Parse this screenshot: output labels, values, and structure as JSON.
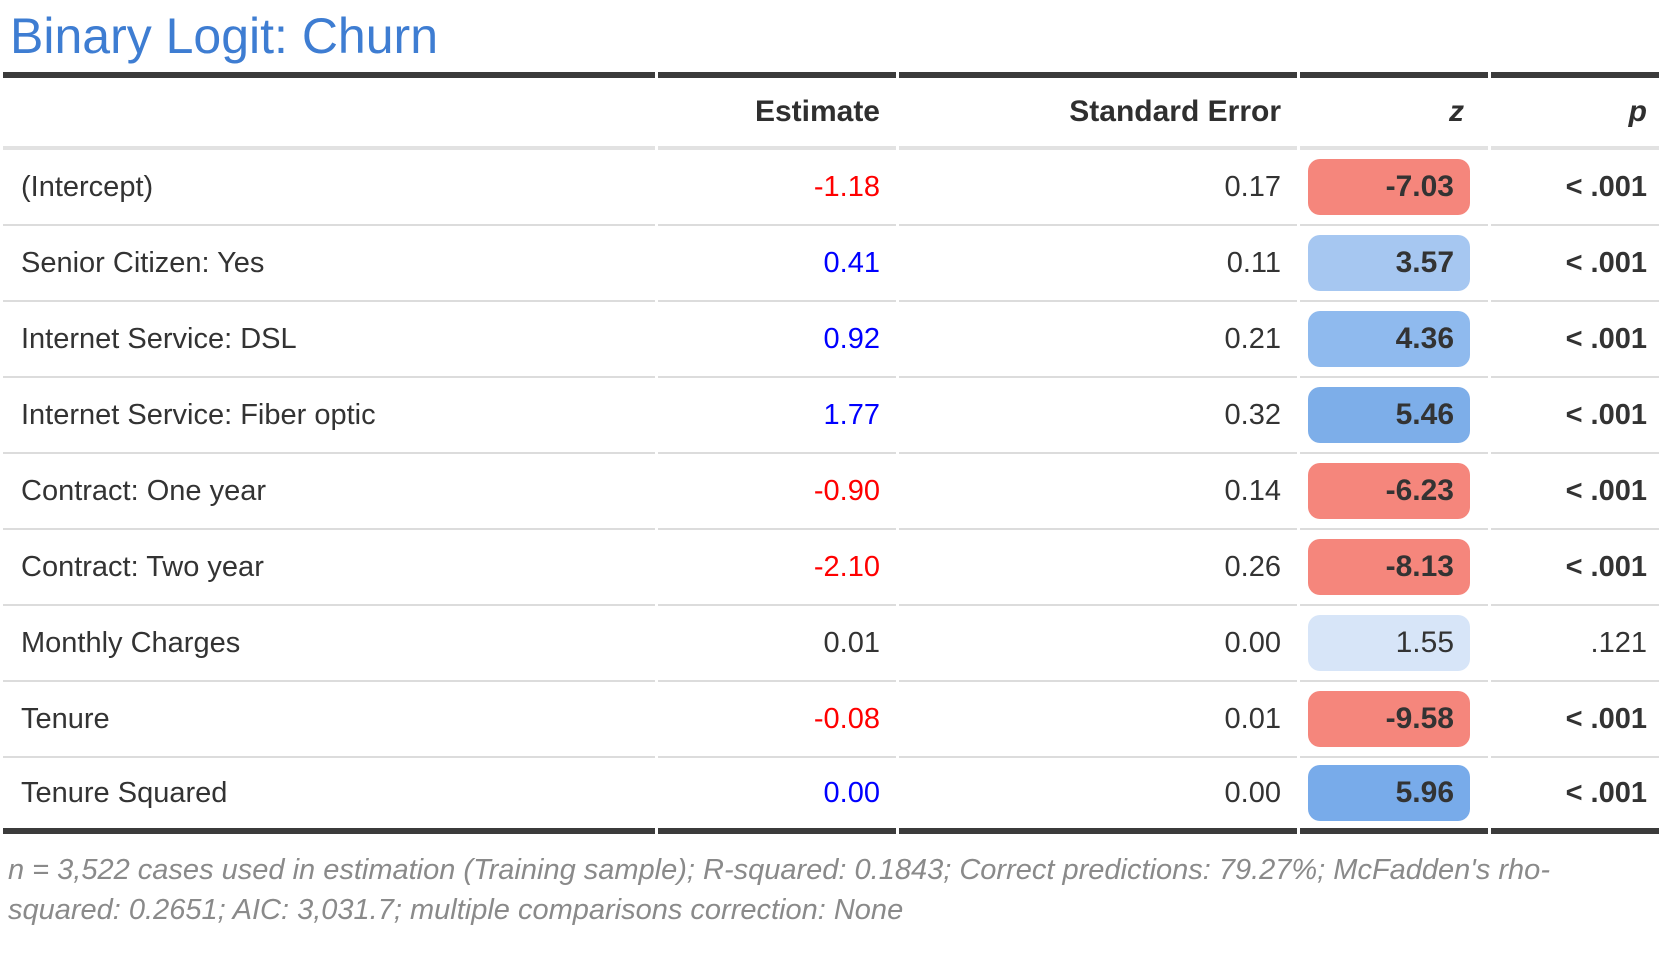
{
  "title": "Binary Logit: Churn",
  "columns": {
    "estimate": "Estimate",
    "standard_error": "Standard Error",
    "z": "z",
    "p": "p"
  },
  "rows": [
    {
      "label": "(Intercept)",
      "estimate": "-1.18",
      "estimate_color": "#FF0000",
      "se": "0.17",
      "z": "-7.03",
      "z_bg": "#F5867C",
      "p": "< .001",
      "significant": true
    },
    {
      "label": "Senior Citizen: Yes",
      "estimate": "0.41",
      "estimate_color": "#0000FF",
      "se": "0.11",
      "z": "3.57",
      "z_bg": "#A6C7F1",
      "p": "< .001",
      "significant": true
    },
    {
      "label": "Internet Service: DSL",
      "estimate": "0.92",
      "estimate_color": "#0000FF",
      "se": "0.21",
      "z": "4.36",
      "z_bg": "#8FBAEE",
      "p": "< .001",
      "significant": true
    },
    {
      "label": "Internet Service: Fiber optic",
      "estimate": "1.77",
      "estimate_color": "#0000FF",
      "se": "0.32",
      "z": "5.46",
      "z_bg": "#7DAEE9",
      "p": "< .001",
      "significant": true
    },
    {
      "label": "Contract: One year",
      "estimate": "-0.90",
      "estimate_color": "#FF0000",
      "se": "0.14",
      "z": "-6.23",
      "z_bg": "#F5867C",
      "p": "< .001",
      "significant": true
    },
    {
      "label": "Contract: Two year",
      "estimate": "-2.10",
      "estimate_color": "#FF0000",
      "se": "0.26",
      "z": "-8.13",
      "z_bg": "#F5867C",
      "p": "< .001",
      "significant": true
    },
    {
      "label": "Monthly Charges",
      "estimate": "0.01",
      "estimate_color": "#333333",
      "se": "0.00",
      "z": "1.55",
      "z_bg": "#D7E5F8",
      "p": ".121",
      "significant": false
    },
    {
      "label": "Tenure",
      "estimate": "-0.08",
      "estimate_color": "#FF0000",
      "se": "0.01",
      "z": "-9.58",
      "z_bg": "#F5867C",
      "p": "< .001",
      "significant": true
    },
    {
      "label": "Tenure Squared",
      "estimate": "0.00",
      "estimate_color": "#0000FF",
      "se": "0.00",
      "z": "5.96",
      "z_bg": "#78ABEA",
      "p": "< .001",
      "significant": true
    }
  ],
  "footer": "n = 3,522 cases used in estimation (Training sample); R-squared: 0.1843; Correct predictions: 79.27%; McFadden's rho-squared: 0.2651; AIC: 3,031.7; multiple comparisons correction: None",
  "colors": {
    "title": "#3E7DD2",
    "positive_estimate": "#0000FF",
    "negative_estimate": "#FF0000",
    "neutral_text": "#333333",
    "negative_z_badge": "#F5867C",
    "positive_z_badge_strong": "#78ABEA",
    "positive_z_badge_weak": "#D7E5F8",
    "dark_rule": "#3B3B3B",
    "row_separator": "#DCDCDC",
    "footer_text": "#8A8A8A"
  },
  "chart_data": {
    "type": "table",
    "title": "Binary Logit: Churn",
    "columns": [
      "Estimate",
      "Standard Error",
      "z",
      "p"
    ],
    "rows": [
      {
        "label": "(Intercept)",
        "estimate": -1.18,
        "standard_error": 0.17,
        "z": -7.03,
        "p": "< .001"
      },
      {
        "label": "Senior Citizen: Yes",
        "estimate": 0.41,
        "standard_error": 0.11,
        "z": 3.57,
        "p": "< .001"
      },
      {
        "label": "Internet Service: DSL",
        "estimate": 0.92,
        "standard_error": 0.21,
        "z": 4.36,
        "p": "< .001"
      },
      {
        "label": "Internet Service: Fiber optic",
        "estimate": 1.77,
        "standard_error": 0.32,
        "z": 5.46,
        "p": "< .001"
      },
      {
        "label": "Contract: One year",
        "estimate": -0.9,
        "standard_error": 0.14,
        "z": -6.23,
        "p": "< .001"
      },
      {
        "label": "Contract: Two year",
        "estimate": -2.1,
        "standard_error": 0.26,
        "z": -8.13,
        "p": "< .001"
      },
      {
        "label": "Monthly Charges",
        "estimate": 0.01,
        "standard_error": 0.0,
        "z": 1.55,
        "p": 0.121
      },
      {
        "label": "Tenure",
        "estimate": -0.08,
        "standard_error": 0.01,
        "z": -9.58,
        "p": "< .001"
      },
      {
        "label": "Tenure Squared",
        "estimate": 0.0,
        "standard_error": 0.0,
        "z": 5.96,
        "p": "< .001"
      }
    ],
    "note": "n = 3,522 cases used in estimation (Training sample); R-squared: 0.1843; Correct predictions: 79.27%; McFadden's rho-squared: 0.2651; AIC: 3,031.7; multiple comparisons correction: None"
  }
}
